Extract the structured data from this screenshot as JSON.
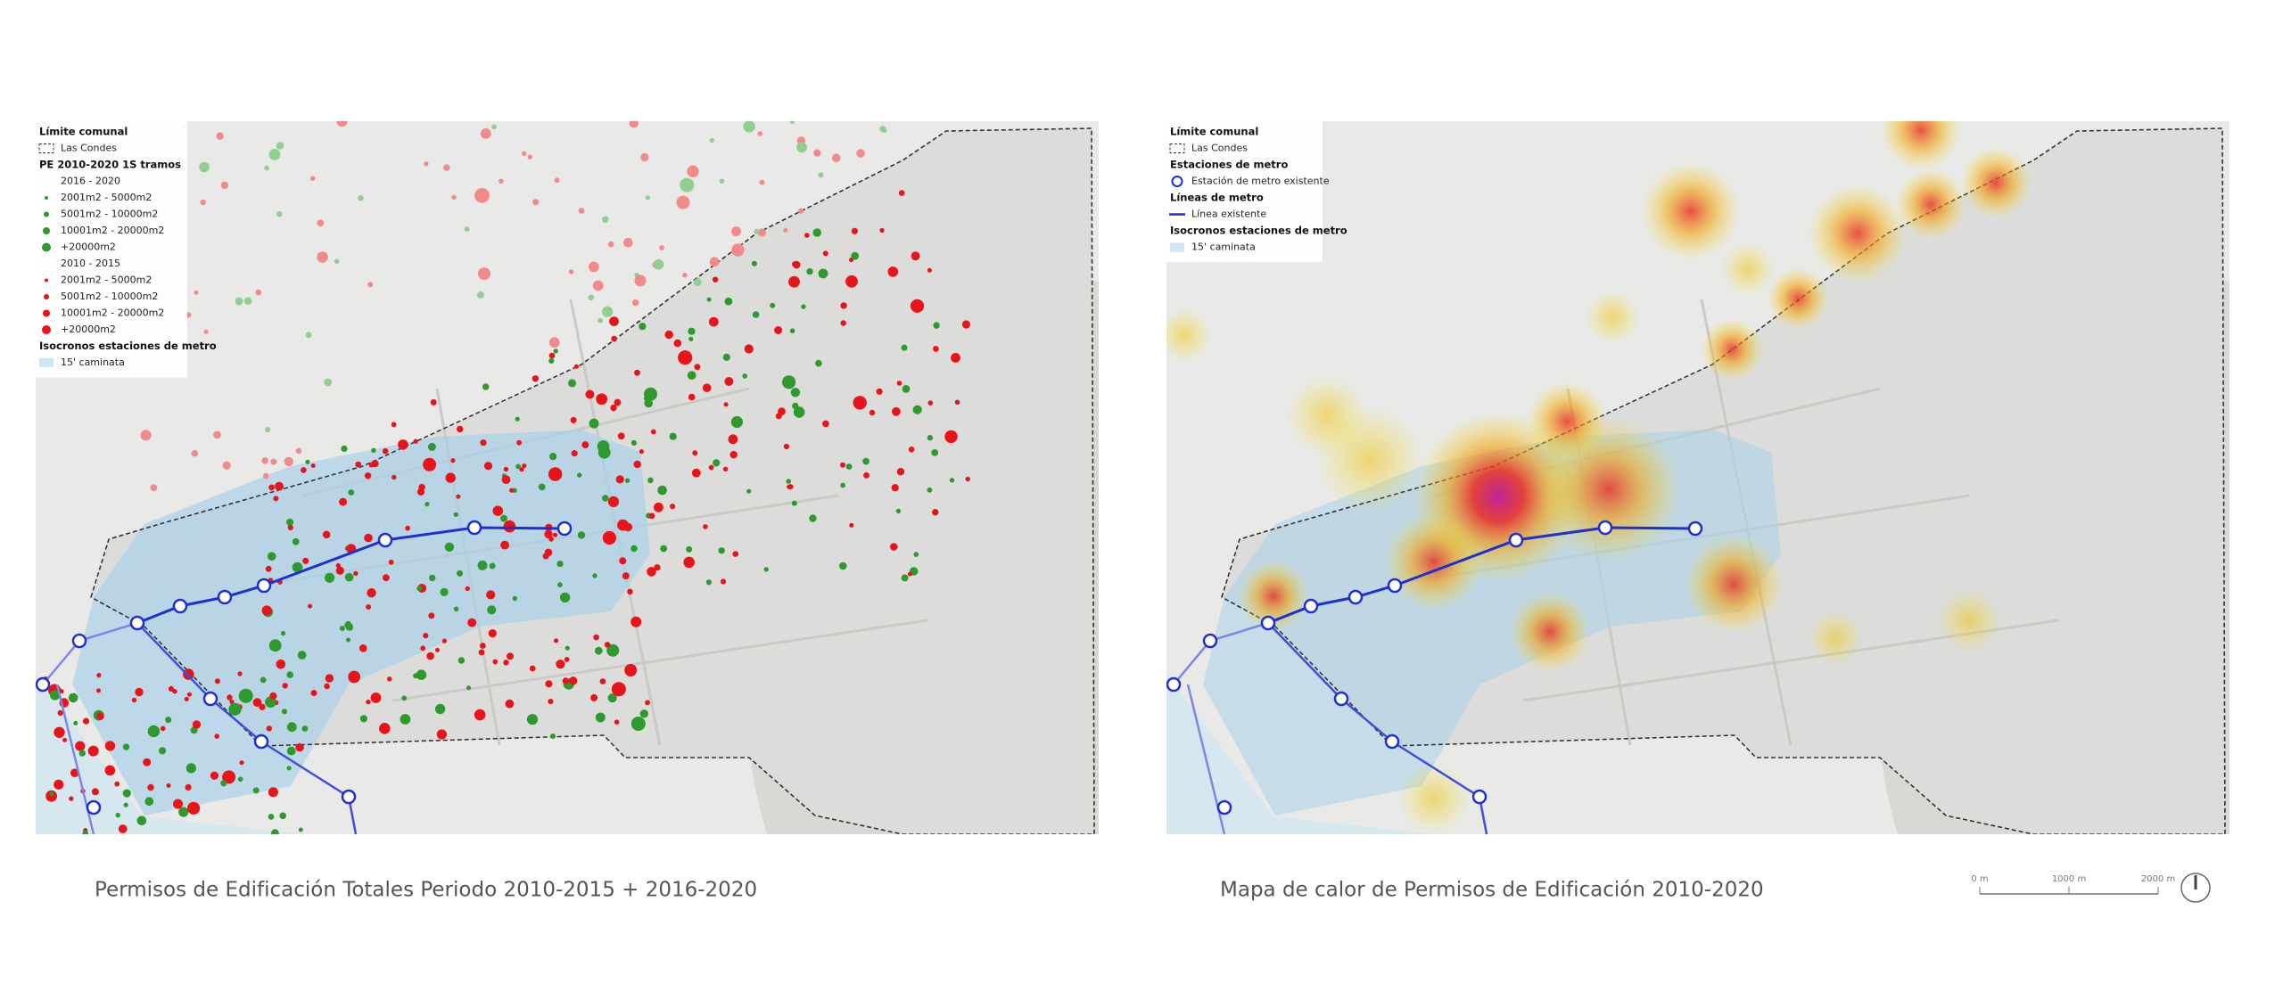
{
  "left_panel": {
    "caption": "Permisos de Edificación Totales Periodo 2010-2015 + 2016-2020",
    "legend": {
      "boundary_title": "Límite comunal",
      "boundary_item": "Las Condes",
      "permits_title": "PE 2010-2020 1S tramos",
      "period_a": "2016 - 2020",
      "period_a_items": [
        "2001m2 - 5000m2",
        "5001m2 - 10000m2",
        "10001m2 - 20000m2",
        "+20000m2"
      ],
      "period_b": "2010 - 2015",
      "period_b_items": [
        "2001m2 - 5000m2",
        "5001m2 - 10000m2",
        "10001m2 - 20000m2",
        "+20000m2"
      ],
      "isochrone_title": "Isocronos estaciones de metro",
      "isochrone_item": "15' caminata"
    }
  },
  "right_panel": {
    "caption": "Mapa de calor de Permisos de Edificación 2010-2020",
    "legend": {
      "boundary_title": "Límite comunal",
      "boundary_item": "Las Condes",
      "stations_title": "Estaciones de metro",
      "stations_item": "Estación de metro existente",
      "lines_title": "Líneas de metro",
      "lines_item": "Línea existente",
      "isochrone_title": "Isocronos estaciones de metro",
      "isochrone_item": "15' caminata"
    }
  },
  "scale_bar": {
    "labels": [
      "0 m",
      "1000 m",
      "2000 m"
    ]
  }
}
